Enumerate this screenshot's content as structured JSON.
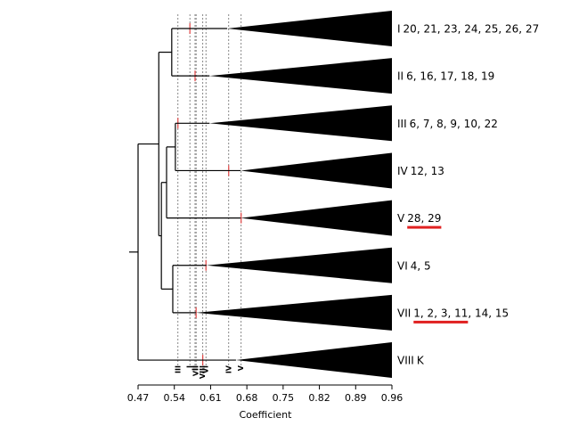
{
  "chart_data": {
    "type": "dendrogram",
    "xlabel": "Coefficient",
    "xlim": [
      0.47,
      0.96
    ],
    "xticks": [
      0.47,
      0.54,
      0.61,
      0.68,
      0.75,
      0.82,
      0.89,
      0.96
    ],
    "leaves": [
      {
        "id": "I",
        "members": [
          {
            "text": "20, 21, 23, 24, 25, 26, 27"
          }
        ],
        "apex": 0.642,
        "cutoff": 0.57
      },
      {
        "id": "II",
        "members": [
          {
            "text": "6, 16, 17, 18, 19"
          }
        ],
        "apex": 0.608,
        "cutoff": 0.58
      },
      {
        "id": "III",
        "members": [
          {
            "text": "6, 7, 8, 9, 10, 22"
          }
        ],
        "apex": 0.608,
        "cutoff": 0.547
      },
      {
        "id": "IV",
        "members": [
          {
            "text": "12, 13"
          }
        ],
        "apex": 0.668,
        "cutoff": 0.645
      },
      {
        "id": "V",
        "members": [
          {
            "text": "28, 29",
            "highlight": true
          }
        ],
        "apex": 0.668,
        "cutoff": 0.669
      },
      {
        "id": "VI",
        "members": [
          {
            "text": "4, 5"
          }
        ],
        "apex": 0.602,
        "cutoff": 0.601
      },
      {
        "id": "VII",
        "members": [
          {
            "text": "1, 2, 3, 11",
            "highlight": true
          },
          {
            "text": ", 14, 15"
          }
        ],
        "apex": 0.582,
        "cutoff": 0.582
      },
      {
        "id": "VIII",
        "members": [
          {
            "text": "K"
          }
        ],
        "apex": 0.659,
        "cutoff": 0.595
      }
    ],
    "merges": [
      {
        "join": [
          0,
          1
        ],
        "coefficient": 0.535
      },
      {
        "join": [
          2,
          3
        ],
        "coefficient": 0.542
      },
      {
        "join": [
          9,
          4
        ],
        "coefficient": 0.525
      },
      {
        "join": [
          5,
          6
        ],
        "coefficient": 0.537
      },
      {
        "join": [
          10,
          11
        ],
        "coefficient": 0.515
      },
      {
        "join": [
          8,
          12
        ],
        "coefficient": 0.51
      },
      {
        "join": [
          13,
          7
        ],
        "coefficient": 0.47
      }
    ],
    "color": "#000000",
    "highlight_color": "#e02020"
  }
}
